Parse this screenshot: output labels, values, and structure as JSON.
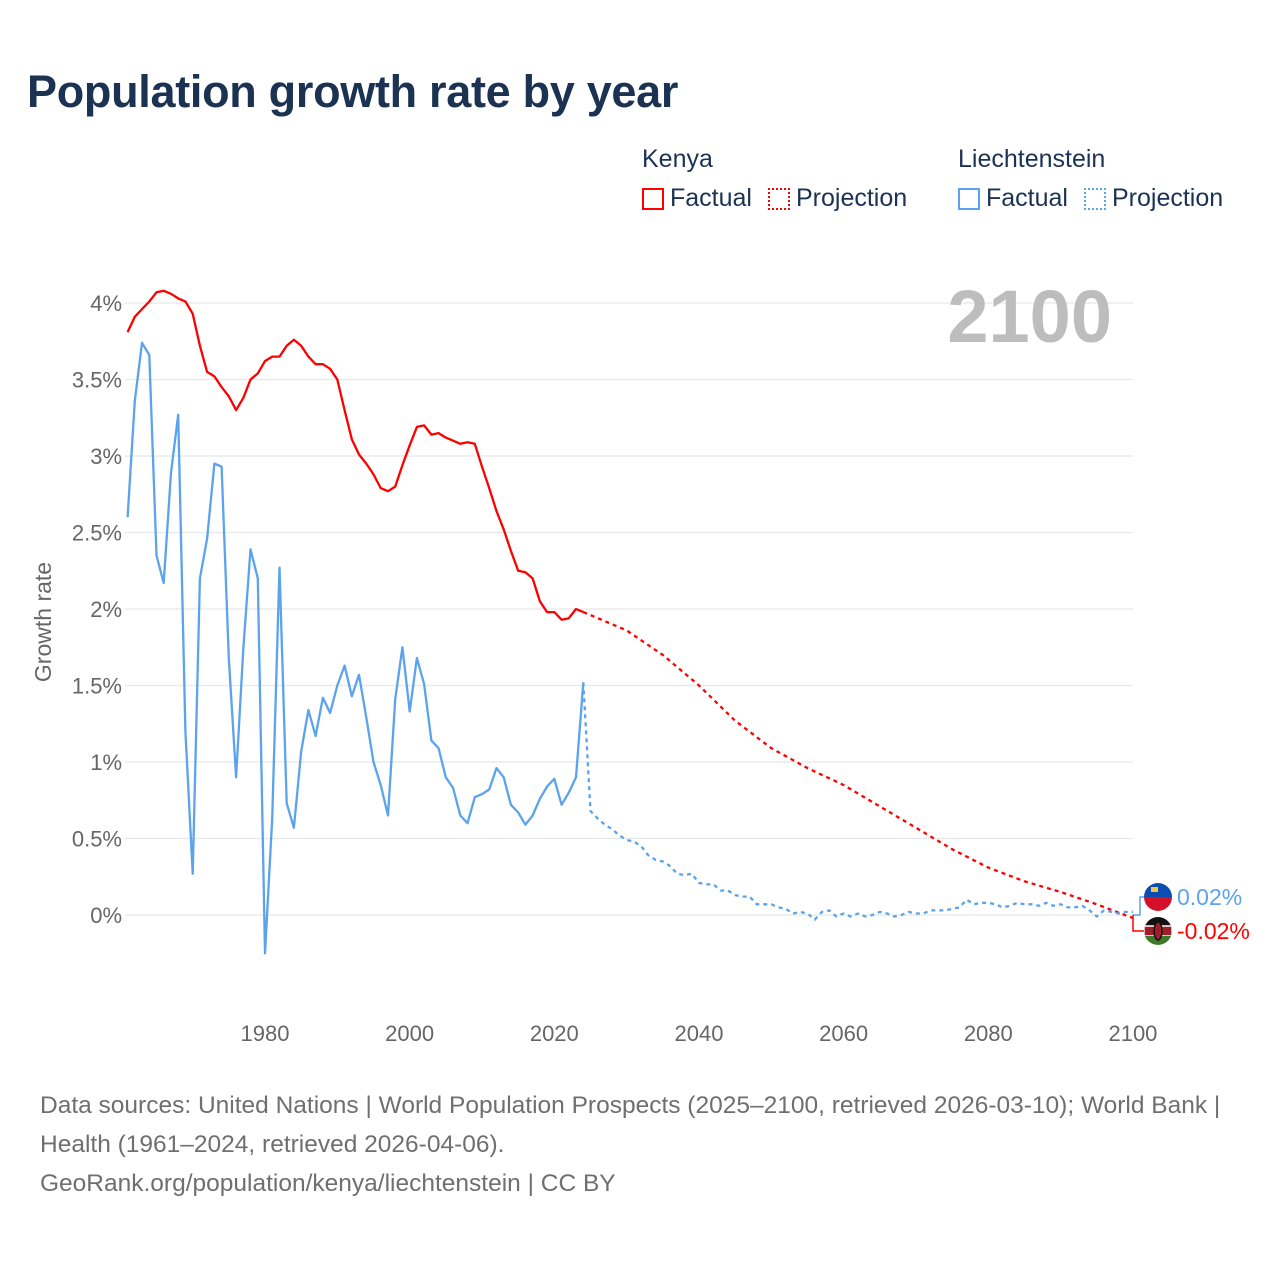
{
  "title": "Population growth rate by year",
  "legend": {
    "groups": [
      {
        "name": "Kenya",
        "color": "#ff0000",
        "factual": "Factual",
        "projection": "Projection"
      },
      {
        "name": "Liechtenstein",
        "color": "#5ba3ec",
        "factual": "Factual",
        "projection": "Projection"
      }
    ]
  },
  "year_overlay": "2100",
  "end_labels": {
    "liechtenstein": "0.02%",
    "kenya": "-0.02%"
  },
  "footer": {
    "sources": "Data sources: United Nations | World Population Prospects (2025–2100, retrieved 2026-03-10); World Bank | Health (1961–2024, retrieved 2026-04-06).",
    "credit": "GeoRank.org/population/kenya/liechtenstein | CC BY"
  },
  "chart_data": {
    "type": "line",
    "title": "Population growth rate by year",
    "xlabel": "",
    "ylabel": "Growth rate",
    "xlim": [
      1961,
      2100
    ],
    "ylim": [
      -0.5,
      4.2
    ],
    "grid": true,
    "legend_placement": "top-right",
    "x_ticks": [
      1980,
      2000,
      2020,
      2040,
      2060,
      2080,
      2100
    ],
    "y_ticks": [
      0,
      0.5,
      1,
      1.5,
      2,
      2.5,
      3,
      3.5,
      4
    ],
    "y_tick_labels": [
      "0%",
      "0.5%",
      "1%",
      "1.5%",
      "2%",
      "2.5%",
      "3%",
      "3.5%",
      "4%"
    ],
    "series": [
      {
        "name": "Kenya Factual",
        "color": "#ff0000",
        "style": "solid",
        "x_start": 1961,
        "values": [
          3.81,
          3.91,
          3.96,
          4.01,
          4.07,
          4.08,
          4.06,
          4.03,
          4.01,
          3.93,
          3.72,
          3.55,
          3.52,
          3.45,
          3.39,
          3.3,
          3.38,
          3.5,
          3.54,
          3.62,
          3.65,
          3.65,
          3.72,
          3.76,
          3.72,
          3.65,
          3.6,
          3.6,
          3.57,
          3.5,
          3.3,
          3.11,
          3.01,
          2.95,
          2.88,
          2.79,
          2.77,
          2.8,
          2.94,
          3.07,
          3.19,
          3.2,
          3.14,
          3.15,
          3.12,
          3.1,
          3.08,
          3.09,
          3.08,
          2.93,
          2.79,
          2.64,
          2.52,
          2.38,
          2.25,
          2.24,
          2.2,
          2.05,
          1.98,
          1.98,
          1.93,
          1.94,
          2.0,
          1.98
        ]
      },
      {
        "name": "Kenya Projection",
        "color": "#ff0000",
        "style": "dotted",
        "x": [
          2024,
          2025,
          2030,
          2035,
          2040,
          2045,
          2050,
          2055,
          2060,
          2065,
          2070,
          2075,
          2080,
          2085,
          2090,
          2095,
          2100
        ],
        "values": [
          1.98,
          1.96,
          1.86,
          1.7,
          1.5,
          1.27,
          1.09,
          0.96,
          0.85,
          0.71,
          0.57,
          0.43,
          0.31,
          0.22,
          0.15,
          0.07,
          -0.02
        ]
      },
      {
        "name": "Liechtenstein Factual",
        "color": "#5ba3ec",
        "style": "solid",
        "x_start": 1961,
        "values": [
          2.6,
          3.36,
          3.74,
          3.66,
          2.35,
          2.17,
          2.89,
          3.27,
          1.2,
          0.27,
          2.2,
          2.46,
          2.95,
          2.93,
          1.68,
          0.9,
          1.74,
          2.39,
          2.2,
          -0.25,
          0.63,
          2.27,
          0.73,
          0.57,
          1.07,
          1.34,
          1.17,
          1.42,
          1.32,
          1.5,
          1.63,
          1.43,
          1.57,
          1.29,
          1.0,
          0.85,
          0.65,
          1.41,
          1.75,
          1.33,
          1.68,
          1.51,
          1.14,
          1.09,
          0.9,
          0.83,
          0.65,
          0.6,
          0.77,
          0.79,
          0.82,
          0.96,
          0.9,
          0.72,
          0.67,
          0.59,
          0.65,
          0.76,
          0.84,
          0.89,
          0.72,
          0.8,
          0.9,
          1.52
        ]
      },
      {
        "name": "Liechtenstein Projection",
        "color": "#5ba3ec",
        "style": "dotted",
        "x_start": 2024,
        "values": [
          1.52,
          0.68,
          0.63,
          0.59,
          0.56,
          0.52,
          0.49,
          0.48,
          0.45,
          0.39,
          0.36,
          0.35,
          0.32,
          0.27,
          0.26,
          0.27,
          0.21,
          0.2,
          0.2,
          0.16,
          0.16,
          0.13,
          0.12,
          0.12,
          0.07,
          0.07,
          0.07,
          0.05,
          0.04,
          0.01,
          0.02,
          0.01,
          -0.03,
          0.02,
          0.03,
          -0.01,
          0.01,
          -0.01,
          0.01,
          -0.01,
          0.0,
          0.02,
          0.01,
          -0.01,
          0.0,
          0.02,
          0.01,
          0.01,
          0.03,
          0.03,
          0.03,
          0.04,
          0.05,
          0.1,
          0.07,
          0.08,
          0.08,
          0.07,
          0.05,
          0.06,
          0.08,
          0.07,
          0.07,
          0.06,
          0.08,
          0.06,
          0.07,
          0.05,
          0.05,
          0.06,
          0.03,
          -0.01,
          0.03,
          0.02,
          0.01,
          0.02,
          0.02
        ]
      }
    ]
  }
}
